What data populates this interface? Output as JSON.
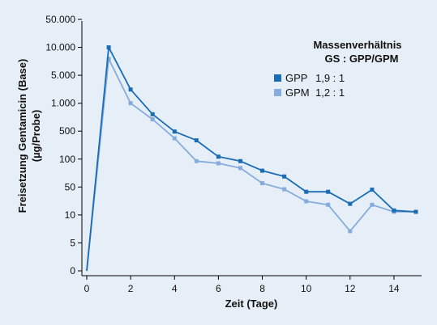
{
  "chart_data": {
    "type": "line",
    "xlabel": "Zeit (Tage)",
    "ylabel_line1": "Freisetzung Gentamicin (Base)",
    "ylabel_line2": "(µg/Probe)",
    "y_scale": "categorical-nonlinear",
    "x_ticks": [
      0,
      2,
      4,
      6,
      8,
      10,
      12,
      14
    ],
    "xlim": [
      0,
      15
    ],
    "y_ticks": [
      {
        "value": 0,
        "label": "0"
      },
      {
        "value": 5,
        "label": "5"
      },
      {
        "value": 10,
        "label": "10"
      },
      {
        "value": 50,
        "label": "50"
      },
      {
        "value": 100,
        "label": "100"
      },
      {
        "value": 500,
        "label": "500"
      },
      {
        "value": 1000,
        "label": "1.000"
      },
      {
        "value": 5000,
        "label": "5.000"
      },
      {
        "value": 10000,
        "label": "10.000"
      },
      {
        "value": 50000,
        "label": "50.000"
      }
    ],
    "legend": {
      "title_line1": "Massenverhältnis",
      "title_line2": "GS : GPP/GPM",
      "placement": "top-right"
    },
    "x": [
      0,
      1,
      2,
      3,
      4,
      5,
      6,
      7,
      8,
      9,
      10,
      11,
      12,
      13,
      14,
      15
    ],
    "series": [
      {
        "name": "GPP",
        "ratio": "1,9 : 1",
        "color": "#1a6cb5",
        "values": [
          0,
          10000,
          2200,
          760,
          490,
          295,
          115,
          95,
          75,
          65,
          38,
          38,
          19,
          43,
          13,
          12
        ]
      },
      {
        "name": "GPM",
        "ratio": "1,2 : 1",
        "color": "#86acdd",
        "values": [
          0,
          7500,
          1000,
          670,
          330,
          95,
          90,
          80,
          55,
          44,
          22,
          18,
          6.7,
          18,
          12,
          12
        ]
      }
    ]
  }
}
